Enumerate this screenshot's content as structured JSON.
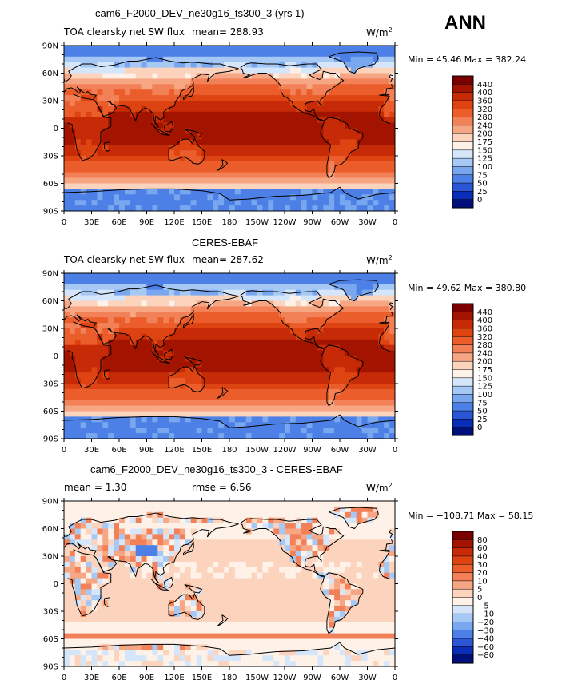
{
  "season": "ANN",
  "units_label": "W/m",
  "units_sup": "2",
  "panels": [
    {
      "title": "cam6_F2000_DEV_ne30g16_ts300_3 (yrs 1)",
      "left_label": "TOA clearsky net SW flux",
      "mean_label": "mean= 288.93",
      "minmax": "Min =  45.46 Max = 382.24",
      "colorbar": {
        "labels": [
          "440",
          "400",
          "360",
          "320",
          "280",
          "240",
          "200",
          "175",
          "150",
          "125",
          "100",
          "75",
          "50",
          "25",
          "0"
        ],
        "colors": [
          "#7a0000",
          "#a31400",
          "#c62a07",
          "#dd4412",
          "#eb5d2a",
          "#f38158",
          "#f7a684",
          "#fcd3bd",
          "#fef1e7",
          "#d5e6fb",
          "#a6c8f5",
          "#78a6ef",
          "#4c80e6",
          "#2a56d6",
          "#0a2db8",
          "#000f7a"
        ]
      },
      "map": {
        "style": "sw",
        "variant": 0
      }
    },
    {
      "title": "CERES-EBAF",
      "left_label": "TOA clearsky net SW flux",
      "mean_label": "mean= 287.62",
      "minmax": "Min =  49.62 Max = 380.80",
      "colorbar": {
        "labels": [
          "440",
          "400",
          "360",
          "320",
          "280",
          "240",
          "200",
          "175",
          "150",
          "125",
          "100",
          "75",
          "50",
          "25",
          "0"
        ],
        "colors": [
          "#7a0000",
          "#a31400",
          "#c62a07",
          "#dd4412",
          "#eb5d2a",
          "#f38158",
          "#f7a684",
          "#fcd3bd",
          "#fef1e7",
          "#d5e6fb",
          "#a6c8f5",
          "#78a6ef",
          "#4c80e6",
          "#2a56d6",
          "#0a2db8",
          "#000f7a"
        ]
      },
      "map": {
        "style": "sw",
        "variant": 1
      }
    },
    {
      "title": "cam6_F2000_DEV_ne30g16_ts300_3 - CERES-EBAF",
      "mean_label": "mean =    1.30",
      "rmse_label": "rmse =    6.56",
      "minmax": "Min = −108.71 Max =  58.15",
      "colorbar": {
        "labels": [
          "80",
          "60",
          "40",
          "30",
          "20",
          "10",
          "5",
          "0",
          "−5",
          "−10",
          "−20",
          "−30",
          "−40",
          "−60",
          "−80"
        ],
        "colors": [
          "#7a0000",
          "#a31400",
          "#c62a07",
          "#dd4412",
          "#eb5d2a",
          "#f38158",
          "#f7a684",
          "#fcd3bd",
          "#fef1e7",
          "#d5e6fb",
          "#a6c8f5",
          "#78a6ef",
          "#4c80e6",
          "#2a56d6",
          "#0a2db8",
          "#000f7a"
        ]
      },
      "map": {
        "style": "diff",
        "variant": 2
      }
    }
  ],
  "lat_ticks": [
    "90N",
    "60N",
    "30N",
    "0",
    "30S",
    "60S",
    "90S"
  ],
  "lon_ticks": [
    "0",
    "30E",
    "60E",
    "90E",
    "120E",
    "150E",
    "180",
    "150W",
    "120W",
    "90W",
    "60W",
    "30W",
    "0"
  ]
}
